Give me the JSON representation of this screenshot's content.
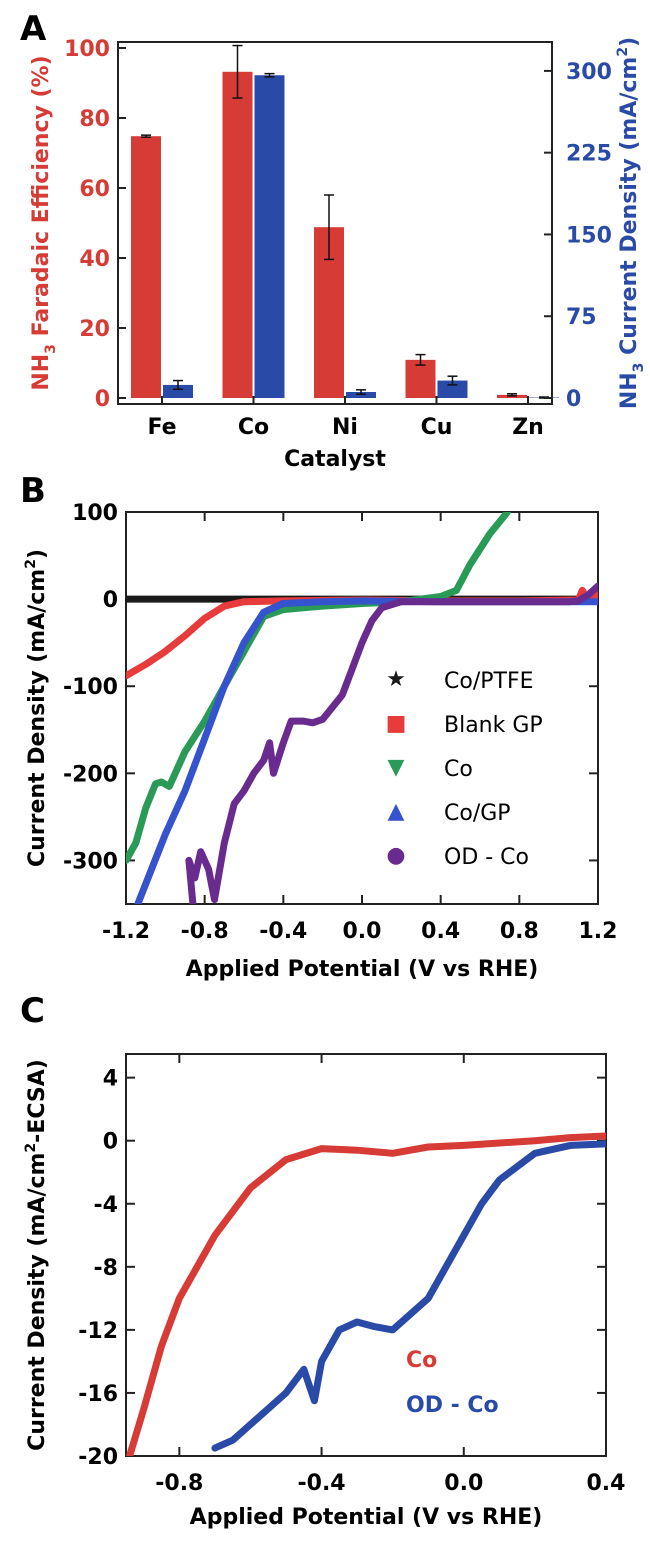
{
  "chart_data": [
    {
      "panel": "A",
      "type": "bar",
      "xlabel": "Catalyst",
      "ylabel_left": "NH₃ Faradaic Efficiency (%)",
      "ylabel_left_parts": [
        "NH",
        "3",
        " Faradaic Efficiency (%)"
      ],
      "ylabel_right": "NH₃ Current Density (mA/cm²)",
      "ylabel_right_parts": [
        "NH",
        "3",
        " Current Density (mA/cm",
        "2",
        ")"
      ],
      "categories": [
        "Fe",
        "Co",
        "Ni",
        "Cu",
        "Zn"
      ],
      "ylim_left": [
        0,
        100
      ],
      "ylim_right": [
        0,
        321
      ],
      "yticks_left": [
        "0",
        "20",
        "40",
        "60",
        "80",
        "100"
      ],
      "yticks_right": [
        "0",
        "75",
        "150",
        "225",
        "300"
      ],
      "series": [
        {
          "name": "NH3 Faradaic Efficiency",
          "axis": "left",
          "color": "#d63b36",
          "values": [
            74.8,
            93.2,
            48.8,
            10.9,
            0.9
          ],
          "errors": [
            0.3,
            7.5,
            9.2,
            1.5,
            0.3
          ]
        },
        {
          "name": "NH3 Current Density",
          "axis": "right",
          "color": "#2a4aa8",
          "values": [
            12.0,
            296.0,
            5.5,
            16.0,
            0.4
          ],
          "errors": [
            4.0,
            1.5,
            2.0,
            4.0,
            0.5
          ]
        }
      ]
    },
    {
      "panel": "B",
      "type": "scatter",
      "xlabel": "Applied Potential (V vs RHE)",
      "ylabel": "Current Density (mA/cm²)",
      "ylabel_parts": [
        "Current Density (mA/cm",
        "2",
        ")"
      ],
      "xlim": [
        -1.2,
        1.2
      ],
      "ylim": [
        -350,
        100
      ],
      "xticks": [
        "-1.2",
        "-0.8",
        "-0.4",
        "0.0",
        "0.4",
        "0.8",
        "1.2"
      ],
      "yticks": [
        "-300",
        "-200",
        "-100",
        "0",
        "100"
      ],
      "series": [
        {
          "name": "Co/PTFE",
          "marker": "★",
          "color": "#1a1a1a",
          "points": [
            [
              -1.2,
              0
            ],
            [
              -0.9,
              0
            ],
            [
              -0.7,
              0
            ],
            [
              -0.6,
              0
            ],
            [
              -0.4,
              0
            ],
            [
              0,
              0
            ],
            [
              0.4,
              0
            ],
            [
              0.8,
              0
            ],
            [
              1.2,
              0
            ]
          ]
        },
        {
          "name": "Blank GP",
          "marker": "■",
          "color": "#e83b3b",
          "points": [
            [
              -1.2,
              -88
            ],
            [
              -1.1,
              -75
            ],
            [
              -1.0,
              -60
            ],
            [
              -0.9,
              -42
            ],
            [
              -0.8,
              -22
            ],
            [
              -0.7,
              -8
            ],
            [
              -0.6,
              -3
            ],
            [
              -0.4,
              -2
            ],
            [
              0,
              -1
            ],
            [
              0.4,
              -2
            ],
            [
              0.8,
              -2
            ],
            [
              1.1,
              -1
            ],
            [
              1.12,
              10
            ],
            [
              1.15,
              -2
            ],
            [
              1.2,
              5
            ]
          ]
        },
        {
          "name": "Co",
          "marker": "▼",
          "color": "#2a9a57",
          "points": [
            [
              -1.2,
              -300
            ],
            [
              -1.15,
              -280
            ],
            [
              -1.1,
              -240
            ],
            [
              -1.05,
              -212
            ],
            [
              -1.02,
              -210
            ],
            [
              -0.98,
              -215
            ],
            [
              -0.9,
              -175
            ],
            [
              -0.8,
              -140
            ],
            [
              -0.7,
              -100
            ],
            [
              -0.6,
              -60
            ],
            [
              -0.5,
              -20
            ],
            [
              -0.4,
              -12
            ],
            [
              -0.3,
              -10
            ],
            [
              -0.2,
              -8
            ],
            [
              0,
              -5
            ],
            [
              0.2,
              -3
            ],
            [
              0.4,
              3
            ],
            [
              0.48,
              10
            ],
            [
              0.55,
              40
            ],
            [
              0.65,
              75
            ],
            [
              0.74,
              100
            ]
          ]
        },
        {
          "name": "Co/GP",
          "marker": "▲",
          "color": "#3553cc",
          "points": [
            [
              -1.14,
              -350
            ],
            [
              -1.0,
              -270
            ],
            [
              -0.9,
              -220
            ],
            [
              -0.8,
              -160
            ],
            [
              -0.7,
              -100
            ],
            [
              -0.6,
              -50
            ],
            [
              -0.5,
              -15
            ],
            [
              -0.4,
              -5
            ],
            [
              -0.2,
              -3
            ],
            [
              0,
              -2
            ],
            [
              0.4,
              -3
            ],
            [
              0.8,
              -3
            ],
            [
              1.2,
              -3
            ]
          ]
        },
        {
          "name": "OD - Co",
          "marker": "●",
          "color": "#6a2b8f",
          "points": [
            [
              -0.86,
              -350
            ],
            [
              -0.88,
              -300
            ],
            [
              -0.85,
              -320
            ],
            [
              -0.82,
              -290
            ],
            [
              -0.78,
              -310
            ],
            [
              -0.75,
              -345
            ],
            [
              -0.7,
              -280
            ],
            [
              -0.65,
              -235
            ],
            [
              -0.6,
              -220
            ],
            [
              -0.55,
              -200
            ],
            [
              -0.5,
              -185
            ],
            [
              -0.47,
              -165
            ],
            [
              -0.45,
              -200
            ],
            [
              -0.4,
              -165
            ],
            [
              -0.36,
              -140
            ],
            [
              -0.3,
              -140
            ],
            [
              -0.25,
              -142
            ],
            [
              -0.2,
              -138
            ],
            [
              -0.1,
              -110
            ],
            [
              -0.05,
              -80
            ],
            [
              0,
              -50
            ],
            [
              0.05,
              -25
            ],
            [
              0.1,
              -10
            ],
            [
              0.2,
              -3
            ],
            [
              0.4,
              -3
            ],
            [
              0.8,
              -3
            ],
            [
              1.05,
              -3
            ],
            [
              1.1,
              -2
            ],
            [
              1.15,
              5
            ],
            [
              1.2,
              15
            ]
          ]
        }
      ]
    },
    {
      "panel": "C",
      "type": "scatter",
      "xlabel": "Applied Potential (V vs RHE)",
      "ylabel": "Current Density (mA/cm²-ECSA)",
      "ylabel_parts": [
        "Current Density (mA/cm",
        "2",
        "-ECSA)"
      ],
      "xlim": [
        -0.95,
        0.4
      ],
      "ylim": [
        -20,
        5.5
      ],
      "xticks": [
        "-0.8",
        "-0.4",
        "0.0",
        "0.4"
      ],
      "yticks": [
        "-20",
        "-16",
        "-12",
        "-8",
        "-4",
        "0",
        "4"
      ],
      "series": [
        {
          "name": "Co",
          "color": "#d63b36",
          "points": [
            [
              -0.94,
              -20
            ],
            [
              -0.9,
              -17
            ],
            [
              -0.85,
              -13
            ],
            [
              -0.8,
              -10
            ],
            [
              -0.7,
              -6
            ],
            [
              -0.6,
              -3
            ],
            [
              -0.5,
              -1.2
            ],
            [
              -0.4,
              -0.5
            ],
            [
              -0.3,
              -0.6
            ],
            [
              -0.2,
              -0.8
            ],
            [
              -0.1,
              -0.4
            ],
            [
              0,
              -0.3
            ],
            [
              0.2,
              0
            ],
            [
              0.3,
              0.2
            ],
            [
              0.4,
              0.3
            ]
          ]
        },
        {
          "name": "OD - Co",
          "color": "#2a4aa8",
          "points": [
            [
              -0.7,
              -19.5
            ],
            [
              -0.65,
              -19
            ],
            [
              -0.6,
              -18
            ],
            [
              -0.55,
              -17
            ],
            [
              -0.5,
              -16
            ],
            [
              -0.45,
              -14.5
            ],
            [
              -0.42,
              -16.5
            ],
            [
              -0.4,
              -14
            ],
            [
              -0.35,
              -12
            ],
            [
              -0.3,
              -11.5
            ],
            [
              -0.25,
              -11.8
            ],
            [
              -0.2,
              -12
            ],
            [
              -0.1,
              -10
            ],
            [
              -0.05,
              -8
            ],
            [
              0,
              -6
            ],
            [
              0.05,
              -4
            ],
            [
              0.1,
              -2.5
            ],
            [
              0.2,
              -0.8
            ],
            [
              0.3,
              -0.3
            ],
            [
              0.4,
              -0.2
            ]
          ]
        }
      ]
    }
  ]
}
